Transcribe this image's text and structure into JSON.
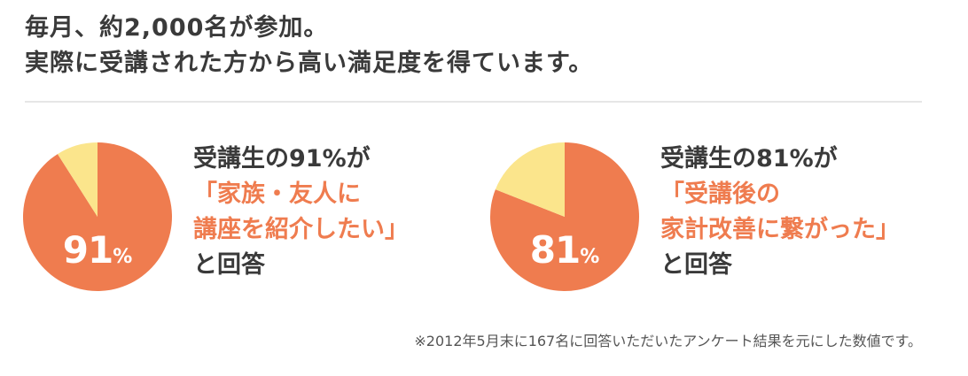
{
  "headline": {
    "line1": "毎月、約2,000名が参加。",
    "line2": "実際に受講された方から高い満足度を得ています。"
  },
  "colors": {
    "accent": "#ef7c4f",
    "remainder": "#fbe58c",
    "text": "#3a3a3a"
  },
  "chart_data": [
    {
      "type": "pie",
      "slices": [
        {
          "label": "91%",
          "value": 91,
          "color": "#ef7c4f"
        },
        {
          "label": "",
          "value": 9,
          "color": "#fbe58c"
        }
      ],
      "center_label": {
        "number": "91",
        "unit": "%"
      }
    },
    {
      "type": "pie",
      "slices": [
        {
          "label": "81%",
          "value": 81,
          "color": "#ef7c4f"
        },
        {
          "label": "",
          "value": 19,
          "color": "#fbe58c"
        }
      ],
      "center_label": {
        "number": "81",
        "unit": "%"
      }
    }
  ],
  "captions": [
    {
      "line1_prefix": "受講生の",
      "line1_value": "91%",
      "line1_suffix": "が",
      "quote_line1": "「家族・友人に",
      "quote_line2": "講座を紹介したい」",
      "line_last": "と回答"
    },
    {
      "line1_prefix": "受講生の",
      "line1_value": "81%",
      "line1_suffix": "が",
      "quote_line1": "「受講後の",
      "quote_line2": "家計改善に繋がった」",
      "line_last": "と回答"
    }
  ],
  "footnote": "※2012年5月末に167名に回答いただいたアンケート結果を元にした数値です。"
}
